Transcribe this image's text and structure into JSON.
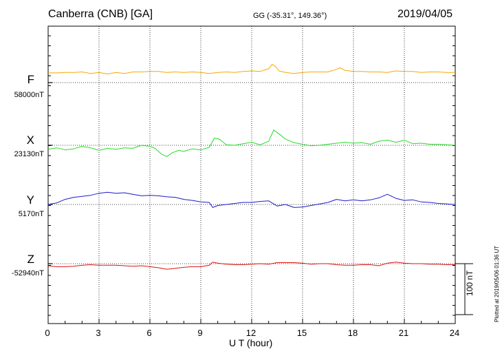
{
  "header": {
    "station": "Canberra (CNB)  [GA]",
    "coords": "GG (-35.31°, 149.36°)",
    "date": "2019/04/05"
  },
  "scale_bar": {
    "label": "100 nT",
    "value_nT": 100
  },
  "plotted_note": "Plotted at 2019/05/06 01:36 UT",
  "colors": {
    "F": "#f5a800",
    "X": "#22dd22",
    "Y": "#1a1acc",
    "Z": "#dd1111"
  },
  "chart_data": {
    "type": "line",
    "xlabel": "U T (hour)",
    "xlim": [
      0,
      24
    ],
    "x_ticks": [
      "0",
      "3",
      "6",
      "9",
      "12",
      "15",
      "18",
      "21",
      "24"
    ],
    "grid": "vertical dotted every 3 hours",
    "series": [
      {
        "name": "F",
        "baseline_label": "58000nT",
        "baseline_nT": 58000,
        "x": [
          0,
          0.5,
          1,
          1.5,
          2,
          2.5,
          3,
          3.5,
          4,
          4.5,
          5,
          5.5,
          6,
          6.5,
          7,
          7.5,
          8,
          8.5,
          9,
          9.5,
          10,
          10.5,
          11,
          11.5,
          12,
          12.5,
          13,
          13.2,
          13.4,
          13.6,
          14,
          14.5,
          15,
          15.5,
          16,
          16.5,
          17,
          17.2,
          17.5,
          18,
          18.5,
          19,
          19.5,
          20,
          20.5,
          21,
          21.5,
          22,
          22.5,
          23,
          23.5,
          24
        ],
        "y": [
          19,
          19,
          20,
          20,
          21,
          18,
          20,
          17,
          20,
          18,
          21,
          21,
          22,
          22,
          20,
          21,
          20,
          21,
          20,
          18,
          20,
          21,
          20,
          22,
          23,
          22,
          27,
          36,
          32,
          23,
          20,
          18,
          20,
          21,
          21,
          21,
          26,
          29,
          24,
          22,
          22,
          21,
          21,
          20,
          23,
          22,
          22,
          20,
          21,
          21,
          20,
          20
        ]
      },
      {
        "name": "X",
        "baseline_label": "23130nT",
        "baseline_nT": 23130,
        "x": [
          0,
          0.5,
          1,
          1.5,
          2,
          2.5,
          3,
          3.5,
          4,
          4.5,
          5,
          5.5,
          6,
          6.3,
          6.7,
          7,
          7.3,
          7.7,
          8,
          8.5,
          9,
          9.5,
          9.8,
          10.1,
          10.5,
          11,
          11.5,
          12,
          12.5,
          13,
          13.3,
          13.7,
          14,
          14.5,
          15,
          15.5,
          16,
          16.5,
          17,
          17.5,
          18,
          18.5,
          19,
          19.5,
          20,
          20.5,
          21,
          21.5,
          22,
          22.5,
          23,
          23.5,
          24
        ],
        "y": [
          -8,
          -5,
          -9,
          -7,
          -2,
          -5,
          -10,
          -6,
          -8,
          -5,
          -6,
          0,
          -2,
          -6,
          -18,
          -22,
          -15,
          -10,
          -12,
          -7,
          -9,
          -4,
          14,
          12,
          1,
          0,
          3,
          6,
          1,
          8,
          30,
          20,
          12,
          5,
          2,
          -1,
          0,
          2,
          4,
          6,
          4,
          5,
          2,
          8,
          10,
          6,
          10,
          3,
          4,
          2,
          2,
          1,
          0
        ]
      },
      {
        "name": "Y",
        "baseline_label": "5170nT",
        "baseline_nT": 5170,
        "x": [
          0,
          0.5,
          1,
          1.5,
          2,
          2.5,
          3,
          3.5,
          4,
          4.5,
          5,
          5.5,
          6,
          6.5,
          7,
          7.5,
          8,
          8.5,
          9,
          9.5,
          9.7,
          10,
          10.5,
          11,
          11.5,
          12,
          12.5,
          13,
          13.5,
          14,
          14.5,
          15,
          15.5,
          16,
          16.5,
          17,
          17.5,
          18,
          18.5,
          19,
          19.5,
          20,
          20.5,
          21,
          21.5,
          22,
          22.5,
          23,
          23.5,
          24
        ],
        "y": [
          0,
          3,
          10,
          14,
          16,
          18,
          22,
          24,
          22,
          23,
          20,
          17,
          18,
          17,
          15,
          14,
          10,
          8,
          5,
          4,
          -6,
          -2,
          0,
          2,
          4,
          4,
          6,
          7,
          -3,
          0,
          -6,
          -5,
          -2,
          1,
          4,
          10,
          7,
          9,
          7,
          9,
          13,
          20,
          12,
          8,
          9,
          5,
          4,
          2,
          1,
          0
        ]
      },
      {
        "name": "Z",
        "baseline_label": "-52940nT",
        "baseline_nT": -52940,
        "x": [
          0,
          0.5,
          1,
          1.5,
          2,
          2.5,
          3,
          3.5,
          4,
          4.5,
          5,
          5.5,
          6,
          6.5,
          7,
          7.5,
          8,
          8.5,
          9,
          9.5,
          9.7,
          10,
          10.5,
          11,
          11.5,
          12,
          12.5,
          13,
          13.5,
          14,
          14.5,
          15,
          15.5,
          16,
          16.5,
          17,
          17.5,
          18,
          18.5,
          19,
          19.5,
          20,
          20.5,
          21,
          21.5,
          22,
          22.5,
          23,
          23.5,
          24
        ],
        "y": [
          -4,
          -6,
          -6,
          -5,
          -3,
          -2,
          -3,
          -3,
          -3,
          -4,
          -5,
          -4,
          -6,
          -8,
          -11,
          -9,
          -7,
          -6,
          -6,
          -3,
          3,
          1,
          -1,
          -2,
          -2,
          -1,
          0,
          -1,
          2,
          2,
          2,
          1,
          -1,
          0,
          0,
          -2,
          -3,
          -3,
          -2,
          -2,
          -4,
          1,
          3,
          1,
          0,
          0,
          -1,
          -1,
          -2,
          -2
        ]
      }
    ]
  }
}
